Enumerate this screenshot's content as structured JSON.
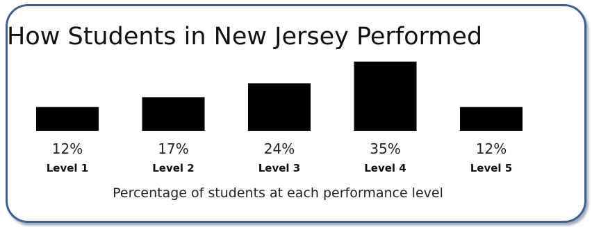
{
  "chart_data": {
    "type": "bar",
    "title": "How Students in New Jersey Performed",
    "caption": "Percentage of students at each performance level",
    "categories": [
      "Level 1",
      "Level 2",
      "Level 3",
      "Level 4",
      "Level 5"
    ],
    "values": [
      12,
      17,
      24,
      35,
      12
    ],
    "value_labels": [
      "12%",
      "17%",
      "24%",
      "35%",
      "12%"
    ],
    "value_unit": "%",
    "ylim": [
      0,
      35
    ],
    "grid": false,
    "bar_color": "#000000"
  }
}
